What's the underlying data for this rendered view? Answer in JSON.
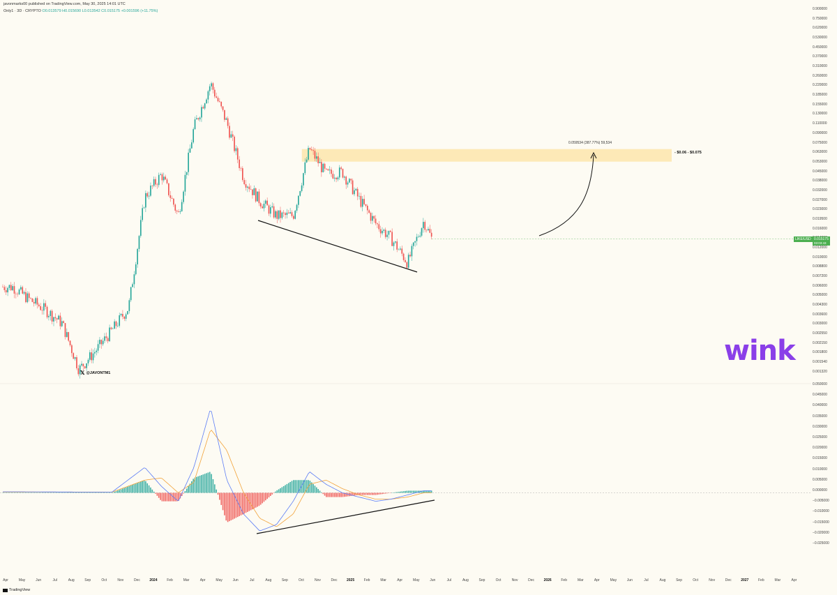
{
  "header": {
    "published_by": "javonmarks00 published on TradingView.com, May 30, 2025 14:01 UTC",
    "symbol": "Only1 · 3D · CRYPTO",
    "ohlc": "O0.013579 H0.015690 L0.013542 C0.015175 +0.001596 (+11.75%)"
  },
  "watermark_handle": "@JAVONTM1",
  "logo_text": "wink",
  "footer_text": "TradingView",
  "annotations": {
    "target_range": "- $0.06 - $0.075",
    "measure": "0.059534 (387.77%) 59,534"
  },
  "price_tag": {
    "left": "LIKE/USD",
    "right": "0.015175",
    "right_sub": "03:03:43"
  },
  "price_axis_labels": [
    "0.900000",
    "0.750000",
    "0.620000",
    "0.530000",
    "0.450000",
    "0.370000",
    "0.310000",
    "0.260000",
    "0.220000",
    "0.185000",
    "0.155000",
    "0.130000",
    "0.110000",
    "0.090000",
    "0.075000",
    "0.063000",
    "0.053000",
    "0.045000",
    "0.038000",
    "0.032000",
    "0.027000",
    "0.023000",
    "0.019500",
    "0.016000",
    "0.014000",
    "0.012000",
    "0.010000",
    "0.008800",
    "0.007200",
    "0.006000",
    "0.005000",
    "0.004300",
    "0.003600",
    "0.003000",
    "0.002550",
    "0.002150",
    "0.001800",
    "0.001540",
    "0.001320"
  ],
  "macd_axis_labels": [
    "0.050000",
    "0.045000",
    "0.040000",
    "0.035000",
    "0.030000",
    "0.025000",
    "0.020000",
    "0.015000",
    "0.010000",
    "0.005000",
    "0.000000",
    "−0.005000",
    "−0.010000",
    "−0.015000",
    "−0.020000",
    "−0.025000"
  ],
  "time_axis_labels": [
    "Apr",
    "May",
    "Jun",
    "Jul",
    "Aug",
    "Sep",
    "Oct",
    "Nov",
    "Dec",
    "2024",
    "Feb",
    "Mar",
    "Apr",
    "May",
    "Jun",
    "Jul",
    "Aug",
    "Sep",
    "Oct",
    "Nov",
    "Dec",
    "2025",
    "Feb",
    "Mar",
    "Apr",
    "May",
    "Jun",
    "Jul",
    "Aug",
    "Sep",
    "Oct",
    "Nov",
    "Dec",
    "2026",
    "Feb",
    "Mar",
    "Apr",
    "May",
    "Jun",
    "Jul",
    "Aug",
    "Sep",
    "Oct",
    "Nov",
    "Dec",
    "2027",
    "Feb",
    "Mar",
    "Apr"
  ],
  "colors": {
    "up": "#26a69a",
    "down": "#ef5350",
    "macd": "#5b7cf5",
    "signal": "#f2a33a",
    "zone": "#fde7b0",
    "accent": "#8a3fe8"
  },
  "chart_data": {
    "type": "candlestick",
    "scale": "log",
    "ylim": [
      0.00132,
      0.9
    ],
    "close_series": [
      {
        "date": "2023-04",
        "close": 0.0065
      },
      {
        "date": "2023-05",
        "close": 0.0052
      },
      {
        "date": "2023-06",
        "close": 0.0043
      },
      {
        "date": "2023-07",
        "close": 0.0034
      },
      {
        "date": "2023-08",
        "close": 0.0015
      },
      {
        "date": "2023-09",
        "close": 0.0021
      },
      {
        "date": "2023-10",
        "close": 0.003
      },
      {
        "date": "2023-11",
        "close": 0.0045
      },
      {
        "date": "2023-12",
        "close": 0.032
      },
      {
        "date": "2024-01",
        "close": 0.048
      },
      {
        "date": "2024-02",
        "close": 0.023
      },
      {
        "date": "2024-03",
        "close": 0.11
      },
      {
        "date": "2024-04",
        "close": 0.24
      },
      {
        "date": "2024-05",
        "close": 0.12
      },
      {
        "date": "2024-06",
        "close": 0.045
      },
      {
        "date": "2024-07",
        "close": 0.03
      },
      {
        "date": "2024-08",
        "close": 0.023
      },
      {
        "date": "2024-09",
        "close": 0.023
      },
      {
        "date": "2024-10",
        "close": 0.076
      },
      {
        "date": "2024-11",
        "close": 0.048
      },
      {
        "date": "2024-12",
        "close": 0.05
      },
      {
        "date": "2025-01",
        "close": 0.031
      },
      {
        "date": "2025-02",
        "close": 0.02
      },
      {
        "date": "2025-03",
        "close": 0.0155
      },
      {
        "date": "2025-04",
        "close": 0.01
      },
      {
        "date": "2025-05",
        "close": 0.021
      },
      {
        "date": "2025-05-30",
        "close": 0.015175
      }
    ],
    "target_zone": [
      0.06,
      0.075
    ],
    "macd": {
      "ylim": [
        -0.025,
        0.05
      ],
      "series": [
        {
          "date": "2023-04",
          "macd": 0.0005,
          "signal": 0.0004
        },
        {
          "date": "2023-10",
          "macd": 0.0003,
          "signal": 0.0003
        },
        {
          "date": "2023-12",
          "macd": 0.012,
          "signal": 0.006
        },
        {
          "date": "2024-01",
          "macd": 0.003,
          "signal": 0.007
        },
        {
          "date": "2024-02",
          "macd": -0.004,
          "signal": 0.0
        },
        {
          "date": "2024-03",
          "macd": 0.012,
          "signal": 0.005
        },
        {
          "date": "2024-04",
          "macd": 0.04,
          "signal": 0.03
        },
        {
          "date": "2024-05",
          "macd": 0.006,
          "signal": 0.02
        },
        {
          "date": "2024-06",
          "macd": -0.01,
          "signal": 0.0
        },
        {
          "date": "2024-07",
          "macd": -0.018,
          "signal": -0.012
        },
        {
          "date": "2024-08",
          "macd": -0.015,
          "signal": -0.016
        },
        {
          "date": "2024-09",
          "macd": -0.004,
          "signal": -0.01
        },
        {
          "date": "2024-10",
          "macd": 0.01,
          "signal": 0.004
        },
        {
          "date": "2024-11",
          "macd": 0.004,
          "signal": 0.006
        },
        {
          "date": "2024-12",
          "macd": 0.0,
          "signal": 0.002
        },
        {
          "date": "2025-01",
          "macd": -0.002,
          "signal": -0.001
        },
        {
          "date": "2025-02",
          "macd": -0.004,
          "signal": -0.003
        },
        {
          "date": "2025-03",
          "macd": -0.003,
          "signal": -0.003
        },
        {
          "date": "2025-04",
          "macd": -0.001,
          "signal": -0.002
        },
        {
          "date": "2025-05",
          "macd": 0.001,
          "signal": 0.0
        }
      ]
    }
  }
}
